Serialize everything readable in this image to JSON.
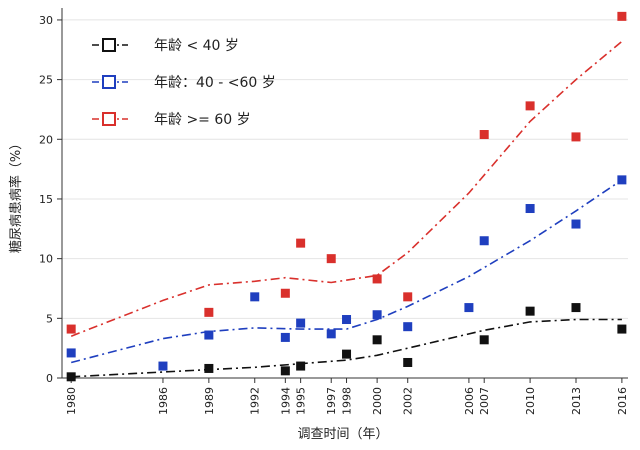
{
  "chart_data": {
    "type": "scatter",
    "xlabel": "调查时间（年）",
    "ylabel": "糖尿病患病率（%）",
    "ylim": [
      0,
      31
    ],
    "y_ticks": [
      0,
      5,
      10,
      15,
      20,
      25,
      30
    ],
    "x_ticks": [
      1980,
      1986,
      1989,
      1992,
      1994,
      1995,
      1997,
      1998,
      2000,
      2002,
      2006,
      2007,
      2010,
      2013,
      2016
    ],
    "legend_position": "top-left",
    "series": [
      {
        "name": "年龄 < 40 岁",
        "color": "#111111",
        "points": [
          [
            1980,
            0.1
          ],
          [
            1989,
            0.8
          ],
          [
            1994,
            0.6
          ],
          [
            1995,
            1.0
          ],
          [
            1998,
            2.0
          ],
          [
            2000,
            3.2
          ],
          [
            2002,
            1.3
          ],
          [
            2007,
            3.2
          ],
          [
            2010,
            5.6
          ],
          [
            2013,
            5.9
          ],
          [
            2016,
            4.1
          ]
        ],
        "trend": [
          [
            1980,
            0.1
          ],
          [
            1986,
            0.5
          ],
          [
            1989,
            0.7
          ],
          [
            1992,
            0.9
          ],
          [
            1995,
            1.2
          ],
          [
            1998,
            1.5
          ],
          [
            2000,
            1.9
          ],
          [
            2002,
            2.5
          ],
          [
            2007,
            4.0
          ],
          [
            2010,
            4.7
          ],
          [
            2013,
            4.9
          ],
          [
            2016,
            4.9
          ]
        ]
      },
      {
        "name": "年龄：40 - <60 岁",
        "color": "#1f3fbf",
        "points": [
          [
            1980,
            2.1
          ],
          [
            1986,
            1.0
          ],
          [
            1989,
            3.6
          ],
          [
            1992,
            6.8
          ],
          [
            1994,
            3.4
          ],
          [
            1995,
            4.6
          ],
          [
            1997,
            3.7
          ],
          [
            1998,
            4.9
          ],
          [
            2000,
            5.3
          ],
          [
            2002,
            4.3
          ],
          [
            2006,
            5.9
          ],
          [
            2007,
            11.5
          ],
          [
            2010,
            14.2
          ],
          [
            2013,
            12.9
          ],
          [
            2016,
            16.6
          ]
        ],
        "trend": [
          [
            1980,
            1.3
          ],
          [
            1983,
            2.3
          ],
          [
            1986,
            3.3
          ],
          [
            1989,
            3.9
          ],
          [
            1992,
            4.2
          ],
          [
            1995,
            4.1
          ],
          [
            1998,
            4.1
          ],
          [
            2000,
            4.9
          ],
          [
            2002,
            6.0
          ],
          [
            2006,
            8.5
          ],
          [
            2010,
            11.5
          ],
          [
            2013,
            14.0
          ],
          [
            2016,
            16.6
          ]
        ]
      },
      {
        "name": "年龄 >= 60 岁",
        "color": "#d9302c",
        "points": [
          [
            1980,
            4.1
          ],
          [
            1989,
            5.5
          ],
          [
            1994,
            7.1
          ],
          [
            1995,
            11.3
          ],
          [
            1997,
            10.0
          ],
          [
            2000,
            8.3
          ],
          [
            2002,
            6.8
          ],
          [
            2007,
            20.4
          ],
          [
            2010,
            22.8
          ],
          [
            2013,
            20.2
          ],
          [
            2016,
            30.3
          ]
        ],
        "trend": [
          [
            1980,
            3.5
          ],
          [
            1983,
            5.0
          ],
          [
            1986,
            6.5
          ],
          [
            1989,
            7.8
          ],
          [
            1992,
            8.1
          ],
          [
            1994,
            8.4
          ],
          [
            1997,
            8.0
          ],
          [
            2000,
            8.6
          ],
          [
            2002,
            10.5
          ],
          [
            2006,
            15.5
          ],
          [
            2010,
            21.5
          ],
          [
            2013,
            25.0
          ],
          [
            2016,
            28.2
          ]
        ]
      }
    ]
  }
}
